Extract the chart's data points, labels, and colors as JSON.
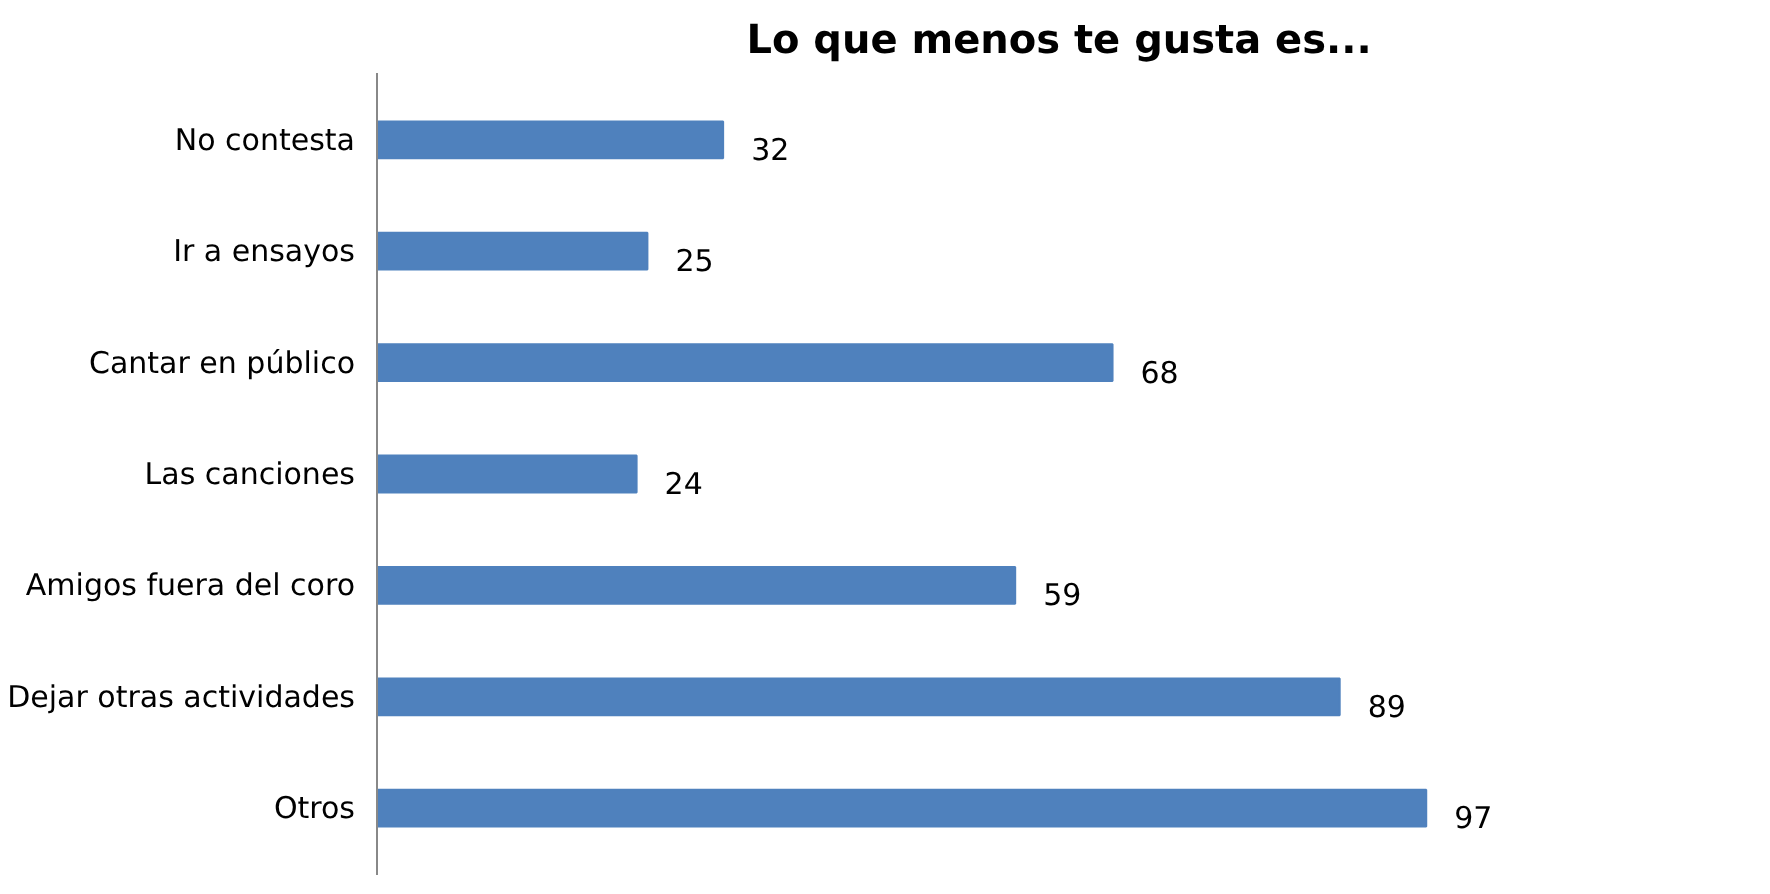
{
  "chart_data": {
    "type": "bar",
    "orientation": "horizontal",
    "title": "Lo que menos te gusta es...",
    "categories": [
      "No contesta",
      "Ir a ensayos",
      "Cantar en público",
      "Las canciones",
      "Amigos fuera del coro",
      "Dejar otras actividades",
      "Otros"
    ],
    "values": [
      32,
      25,
      68,
      24,
      59,
      89,
      97
    ],
    "color": "#4f81bd",
    "data_labels": true,
    "grid": false
  }
}
